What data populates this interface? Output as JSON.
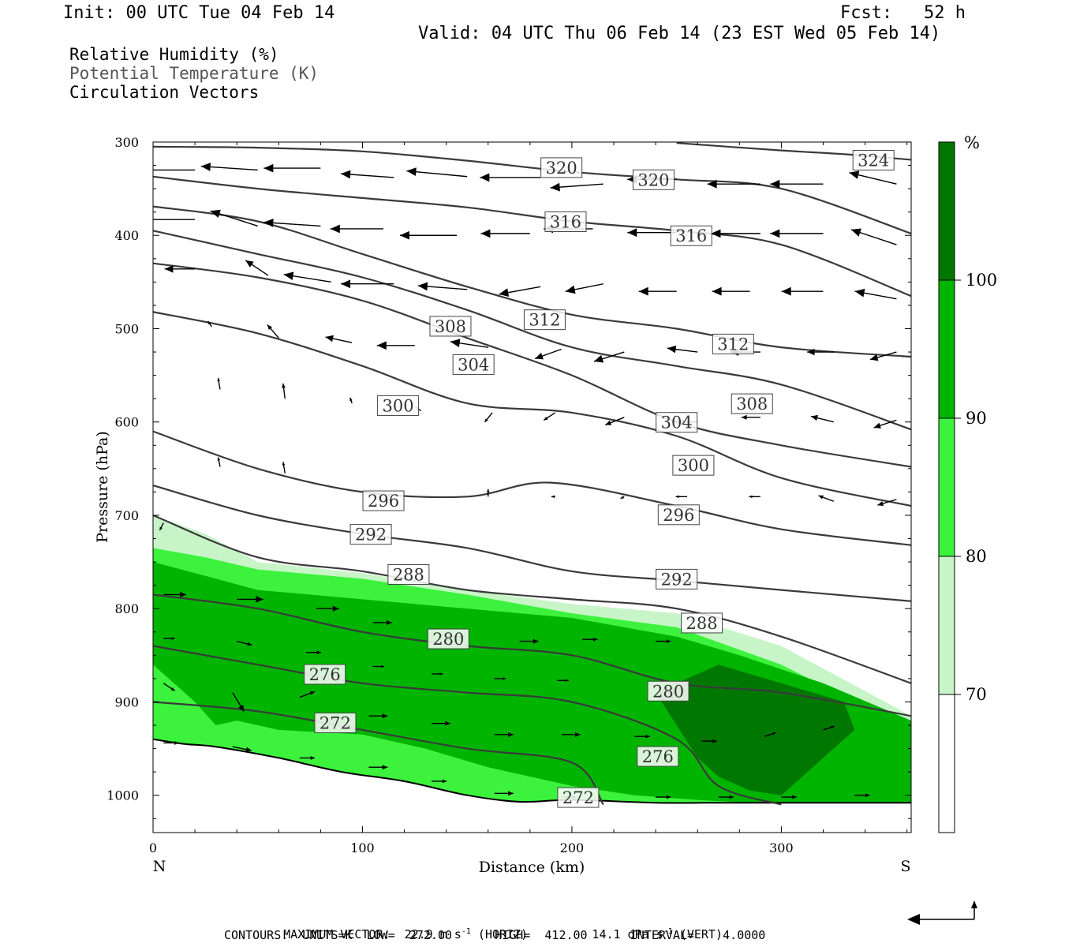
{
  "header": {
    "init": "Init: 00 UTC Tue 04 Feb 14",
    "fcst": "Fcst:   52 h",
    "valid": "Valid: 04 UTC Thu 06 Feb 14 (23 EST Wed 05 Feb 14)"
  },
  "legend": {
    "items": [
      "Relative Humidity (%)",
      "Potential Temperature (K)",
      "Circulation Vectors"
    ]
  },
  "footer": {
    "max_vector_label": "MAXIMUM VECTOR:",
    "max_vector_horiz": "22.9 m s",
    "horiz_unit": "(HORIZ)",
    "max_vector_vert": "14.1 dPa s",
    "vert_unit": "(VERT)",
    "contours": "CONTOURS:  UNITS=K  LOW=  272.00      HIGH=  412.00      INTERVAL=    4.0000",
    "exp": "-1"
  },
  "colors": {
    "rh_70_80": "#c8f5c8",
    "rh_80_90": "#3cf23c",
    "rh_90_100": "#00b400",
    "rh_100": "#007800",
    "contour": "#3a3a3a",
    "vector": "#000000"
  },
  "chart_data": {
    "type": "cross-section",
    "xlabel": "Distance (km)",
    "ylabel": "Pressure (hPa)",
    "xlim": [
      0,
      362
    ],
    "ylim": [
      300,
      1040
    ],
    "x_ticks": [
      0,
      100,
      200,
      300
    ],
    "y_ticks": [
      300,
      400,
      500,
      600,
      700,
      800,
      900,
      1000
    ],
    "x_end_labels": {
      "left": "N",
      "right": "S"
    },
    "colorbar": {
      "unit": "%",
      "levels": [
        70,
        80,
        90,
        100
      ],
      "tick_labels": [
        "70",
        "80",
        "90",
        "100"
      ]
    },
    "theta_contours": [
      {
        "value": 324,
        "x": [
          250,
          300,
          330,
          362
        ],
        "p": [
          301,
          309,
          313,
          319
        ]
      },
      {
        "value": 320,
        "x": [
          0,
          50,
          100,
          150,
          200,
          250,
          300,
          362
        ],
        "p": [
          305,
          306,
          310,
          320,
          332,
          340,
          350,
          398
        ]
      },
      {
        "value": 316,
        "x": [
          0,
          50,
          100,
          150,
          200,
          250,
          300,
          362
        ],
        "p": [
          337,
          350,
          360,
          370,
          385,
          395,
          410,
          465
        ]
      },
      {
        "value": 312,
        "x": [
          0,
          50,
          100,
          150,
          200,
          250,
          300,
          362
        ],
        "p": [
          369,
          385,
          420,
          455,
          485,
          500,
          520,
          530
        ]
      },
      {
        "value": 308,
        "x": [
          0,
          50,
          100,
          150,
          200,
          250,
          300,
          362
        ],
        "p": [
          395,
          420,
          445,
          480,
          520,
          540,
          560,
          608
        ]
      },
      {
        "value": 304,
        "x": [
          0,
          50,
          100,
          150,
          200,
          250,
          300,
          362
        ],
        "p": [
          430,
          445,
          470,
          510,
          550,
          600,
          625,
          648
        ]
      },
      {
        "value": 300,
        "x": [
          0,
          50,
          100,
          150,
          200,
          250,
          300,
          362
        ],
        "p": [
          482,
          505,
          540,
          580,
          590,
          615,
          660,
          690
        ]
      },
      {
        "value": 296,
        "x": [
          0,
          50,
          100,
          150,
          190,
          250,
          300,
          362
        ],
        "p": [
          610,
          650,
          675,
          680,
          665,
          690,
          715,
          732
        ]
      },
      {
        "value": 292,
        "x": [
          0,
          50,
          100,
          150,
          200,
          250,
          300,
          362
        ],
        "p": [
          668,
          700,
          720,
          735,
          760,
          770,
          780,
          792
        ]
      },
      {
        "value": 288,
        "x": [
          0,
          50,
          100,
          150,
          200,
          250,
          300,
          362
        ],
        "p": [
          700,
          745,
          760,
          780,
          790,
          800,
          830,
          880
        ]
      },
      {
        "value": 280,
        "x": [
          0,
          50,
          100,
          150,
          200,
          250,
          300,
          362
        ],
        "p": [
          785,
          800,
          825,
          840,
          850,
          880,
          890,
          915
        ]
      },
      {
        "value": 276,
        "x": [
          0,
          50,
          100,
          150,
          200,
          250,
          270,
          300
        ],
        "p": [
          840,
          860,
          880,
          890,
          900,
          940,
          990,
          1010
        ]
      },
      {
        "value": 272,
        "x": [
          0,
          50,
          100,
          150,
          200,
          215
        ],
        "p": [
          900,
          910,
          930,
          950,
          965,
          1010
        ]
      }
    ],
    "contour_labels": [
      {
        "value": "320",
        "x": 195,
        "p": 327
      },
      {
        "value": "320",
        "x": 239,
        "p": 340
      },
      {
        "value": "324",
        "x": 344,
        "p": 319
      },
      {
        "value": "316",
        "x": 197,
        "p": 385
      },
      {
        "value": "316",
        "x": 257,
        "p": 400
      },
      {
        "value": "312",
        "x": 187,
        "p": 490
      },
      {
        "value": "312",
        "x": 277,
        "p": 516
      },
      {
        "value": "308",
        "x": 142,
        "p": 497
      },
      {
        "value": "308",
        "x": 286,
        "p": 580
      },
      {
        "value": "304",
        "x": 153,
        "p": 538
      },
      {
        "value": "304",
        "x": 250,
        "p": 600
      },
      {
        "value": "300",
        "x": 117,
        "p": 582
      },
      {
        "value": "300",
        "x": 258,
        "p": 646
      },
      {
        "value": "296",
        "x": 110,
        "p": 684
      },
      {
        "value": "296",
        "x": 251,
        "p": 699
      },
      {
        "value": "292",
        "x": 104,
        "p": 720
      },
      {
        "value": "292",
        "x": 250,
        "p": 768
      },
      {
        "value": "288",
        "x": 122,
        "p": 763
      },
      {
        "value": "288",
        "x": 262,
        "p": 815
      },
      {
        "value": "280",
        "x": 141,
        "p": 832
      },
      {
        "value": "280",
        "x": 246,
        "p": 888
      },
      {
        "value": "276",
        "x": 82,
        "p": 870
      },
      {
        "value": "276",
        "x": 241,
        "p": 958
      },
      {
        "value": "272",
        "x": 87,
        "p": 922
      },
      {
        "value": "272",
        "x": 203,
        "p": 1002
      }
    ],
    "rh_shading": {
      "rh_70": {
        "x": [
          0,
          25,
          50,
          100,
          150,
          200,
          250,
          300,
          362,
          362,
          0
        ],
        "p": [
          700,
          720,
          750,
          762,
          780,
          795,
          805,
          840,
          915,
          1040,
          1040
        ]
      },
      "rh_80": {
        "x": [
          0,
          25,
          50,
          100,
          150,
          200,
          250,
          300,
          362,
          362,
          0
        ],
        "p": [
          735,
          745,
          758,
          768,
          785,
          805,
          820,
          860,
          930,
          1040,
          1040
        ]
      },
      "rh_90": {
        "x": [
          0,
          25,
          50,
          100,
          150,
          200,
          250,
          280,
          320,
          362,
          362,
          300,
          260,
          230,
          200,
          160,
          130,
          100,
          60,
          40,
          30,
          20,
          10,
          0
        ],
        "p": [
          750,
          765,
          780,
          790,
          800,
          810,
          830,
          850,
          880,
          920,
          1015,
          1010,
          1005,
          1000,
          990,
          970,
          950,
          935,
          930,
          920,
          925,
          900,
          880,
          860
        ]
      },
      "rh_100": {
        "x": [
          240,
          270,
          300,
          330,
          335,
          320,
          310,
          300,
          285,
          270,
          260
        ],
        "p": [
          890,
          860,
          880,
          900,
          930,
          960,
          980,
          1000,
          995,
          980,
          960
        ]
      }
    },
    "vectors": [
      {
        "x": 20,
        "p": 330,
        "u": -28,
        "w": 0
      },
      {
        "x": 50,
        "p": 330,
        "u": -30,
        "w": 2
      },
      {
        "x": 80,
        "p": 328,
        "u": -30,
        "w": 0
      },
      {
        "x": 115,
        "p": 338,
        "u": -28,
        "w": 2
      },
      {
        "x": 150,
        "p": 337,
        "u": -32,
        "w": 3
      },
      {
        "x": 185,
        "p": 338,
        "u": -32,
        "w": 0
      },
      {
        "x": 215,
        "p": 345,
        "u": -28,
        "w": -2
      },
      {
        "x": 250,
        "p": 340,
        "u": -26,
        "w": 0
      },
      {
        "x": 290,
        "p": 345,
        "u": -28,
        "w": 0
      },
      {
        "x": 320,
        "p": 345,
        "u": -28,
        "w": 0
      },
      {
        "x": 355,
        "p": 345,
        "u": -25,
        "w": 6
      },
      {
        "x": 20,
        "p": 383,
        "u": -28,
        "w": 0
      },
      {
        "x": 50,
        "p": 390,
        "u": -25,
        "w": 8
      },
      {
        "x": 80,
        "p": 390,
        "u": -30,
        "w": 2
      },
      {
        "x": 110,
        "p": 393,
        "u": -28,
        "w": 0
      },
      {
        "x": 145,
        "p": 400,
        "u": -30,
        "w": 0
      },
      {
        "x": 180,
        "p": 398,
        "u": -26,
        "w": 0
      },
      {
        "x": 210,
        "p": 393,
        "u": -26,
        "w": 0
      },
      {
        "x": 250,
        "p": 397,
        "u": -26,
        "w": 0
      },
      {
        "x": 290,
        "p": 398,
        "u": -26,
        "w": 0
      },
      {
        "x": 320,
        "p": 398,
        "u": -28,
        "w": 0
      },
      {
        "x": 355,
        "p": 410,
        "u": -24,
        "w": 8
      },
      {
        "x": 20,
        "p": 436,
        "u": -16,
        "w": 0
      },
      {
        "x": 55,
        "p": 443,
        "u": -12,
        "w": 8
      },
      {
        "x": 85,
        "p": 450,
        "u": -25,
        "w": 4
      },
      {
        "x": 115,
        "p": 452,
        "u": -28,
        "w": 0
      },
      {
        "x": 150,
        "p": 458,
        "u": -26,
        "w": 2
      },
      {
        "x": 185,
        "p": 455,
        "u": -22,
        "w": -4
      },
      {
        "x": 215,
        "p": 452,
        "u": -20,
        "w": -4
      },
      {
        "x": 250,
        "p": 460,
        "u": -20,
        "w": 0
      },
      {
        "x": 285,
        "p": 460,
        "u": -20,
        "w": 0
      },
      {
        "x": 320,
        "p": 460,
        "u": -22,
        "w": 0
      },
      {
        "x": 355,
        "p": 468,
        "u": -22,
        "w": 4
      },
      {
        "x": 28,
        "p": 498,
        "u": -2,
        "w": 3
      },
      {
        "x": 60,
        "p": 510,
        "u": -6,
        "w": 7
      },
      {
        "x": 95,
        "p": 515,
        "u": -14,
        "w": 3
      },
      {
        "x": 125,
        "p": 518,
        "u": -20,
        "w": 0
      },
      {
        "x": 160,
        "p": 520,
        "u": -20,
        "w": 3
      },
      {
        "x": 195,
        "p": 522,
        "u": -14,
        "w": -5
      },
      {
        "x": 225,
        "p": 525,
        "u": -16,
        "w": -5
      },
      {
        "x": 260,
        "p": 525,
        "u": -16,
        "w": 2
      },
      {
        "x": 290,
        "p": 525,
        "u": -16,
        "w": 0
      },
      {
        "x": 325,
        "p": 525,
        "u": -14,
        "w": 0
      },
      {
        "x": 355,
        "p": 525,
        "u": -14,
        "w": -4
      },
      {
        "x": 32,
        "p": 565,
        "u": -1,
        "w": 6
      },
      {
        "x": 63,
        "p": 575,
        "u": -1,
        "w": 8
      },
      {
        "x": 95,
        "p": 580,
        "u": -1,
        "w": 3
      },
      {
        "x": 128,
        "p": 588,
        "u": -3,
        "w": 2
      },
      {
        "x": 162,
        "p": 590,
        "u": -4,
        "w": -5
      },
      {
        "x": 192,
        "p": 590,
        "u": -6,
        "w": -4
      },
      {
        "x": 225,
        "p": 595,
        "u": -10,
        "w": -4
      },
      {
        "x": 260,
        "p": 600,
        "u": -10,
        "w": 0
      },
      {
        "x": 290,
        "p": 595,
        "u": -10,
        "w": 0
      },
      {
        "x": 325,
        "p": 600,
        "u": -12,
        "w": 3
      },
      {
        "x": 355,
        "p": 598,
        "u": -12,
        "w": -4
      },
      {
        "x": 32,
        "p": 648,
        "u": -1,
        "w": 5
      },
      {
        "x": 63,
        "p": 655,
        "u": -1,
        "w": 6
      },
      {
        "x": 160,
        "p": 680,
        "u": 0,
        "w": 4
      },
      {
        "x": 192,
        "p": 680,
        "u": -2,
        "w": 0
      },
      {
        "x": 225,
        "p": 680,
        "u": -2,
        "w": -1
      },
      {
        "x": 255,
        "p": 680,
        "u": -6,
        "w": 0
      },
      {
        "x": 290,
        "p": 680,
        "u": -6,
        "w": 0
      },
      {
        "x": 325,
        "p": 685,
        "u": -8,
        "w": 3
      },
      {
        "x": 355,
        "p": 683,
        "u": -10,
        "w": -3
      },
      {
        "x": 5,
        "p": 708,
        "u": -2,
        "w": -4
      },
      {
        "x": 5,
        "p": 785,
        "u": 12,
        "w": 0
      },
      {
        "x": 40,
        "p": 790,
        "u": 14,
        "w": 0
      },
      {
        "x": 78,
        "p": 800,
        "u": 12,
        "w": 0
      },
      {
        "x": 105,
        "p": 815,
        "u": 10,
        "w": 0
      },
      {
        "x": 140,
        "p": 830,
        "u": 10,
        "w": 0
      },
      {
        "x": 175,
        "p": 835,
        "u": 10,
        "w": 0
      },
      {
        "x": 205,
        "p": 833,
        "u": 8,
        "w": 0
      },
      {
        "x": 240,
        "p": 835,
        "u": 8,
        "w": 0
      },
      {
        "x": 5,
        "p": 832,
        "u": 6,
        "w": 0
      },
      {
        "x": 40,
        "p": 835,
        "u": 8,
        "w": -2
      },
      {
        "x": 73,
        "p": 847,
        "u": 8,
        "w": 0
      },
      {
        "x": 105,
        "p": 862,
        "u": 6,
        "w": 0
      },
      {
        "x": 133,
        "p": 870,
        "u": 6,
        "w": 0
      },
      {
        "x": 163,
        "p": 875,
        "u": 6,
        "w": 0
      },
      {
        "x": 193,
        "p": 877,
        "u": 6,
        "w": 0
      },
      {
        "x": 5,
        "p": 880,
        "u": 6,
        "w": -4
      },
      {
        "x": 38,
        "p": 890,
        "u": 6,
        "w": -10
      },
      {
        "x": 70,
        "p": 895,
        "u": 8,
        "w": 3
      },
      {
        "x": 103,
        "p": 915,
        "u": 10,
        "w": 0
      },
      {
        "x": 133,
        "p": 923,
        "u": 10,
        "w": 0
      },
      {
        "x": 163,
        "p": 935,
        "u": 10,
        "w": 0
      },
      {
        "x": 195,
        "p": 935,
        "u": 10,
        "w": 0
      },
      {
        "x": 230,
        "p": 937,
        "u": 8,
        "w": 0
      },
      {
        "x": 262,
        "p": 942,
        "u": 8,
        "w": 0
      },
      {
        "x": 292,
        "p": 937,
        "u": 6,
        "w": 2
      },
      {
        "x": 320,
        "p": 930,
        "u": 6,
        "w": 2
      },
      {
        "x": 5,
        "p": 944,
        "u": 8,
        "w": 0
      },
      {
        "x": 38,
        "p": 948,
        "u": 10,
        "w": -2
      },
      {
        "x": 70,
        "p": 960,
        "u": 8,
        "w": 0
      },
      {
        "x": 103,
        "p": 970,
        "u": 10,
        "w": 0
      },
      {
        "x": 133,
        "p": 985,
        "u": 8,
        "w": 0
      },
      {
        "x": 163,
        "p": 998,
        "u": 10,
        "w": 0
      },
      {
        "x": 195,
        "p": 1002,
        "u": 8,
        "w": 0
      },
      {
        "x": 240,
        "p": 1002,
        "u": 8,
        "w": 0
      },
      {
        "x": 270,
        "p": 1002,
        "u": 8,
        "w": 0
      },
      {
        "x": 300,
        "p": 1002,
        "u": 8,
        "w": 0
      },
      {
        "x": 335,
        "p": 1000,
        "u": 8,
        "w": 0
      }
    ],
    "ground": {
      "x": [
        0,
        15,
        30,
        60,
        90,
        120,
        150,
        175,
        200,
        240,
        270,
        300,
        362
      ],
      "p": [
        940,
        945,
        948,
        960,
        975,
        985,
        1000,
        1007,
        1005,
        1008,
        1008,
        1008,
        1008
      ]
    }
  }
}
